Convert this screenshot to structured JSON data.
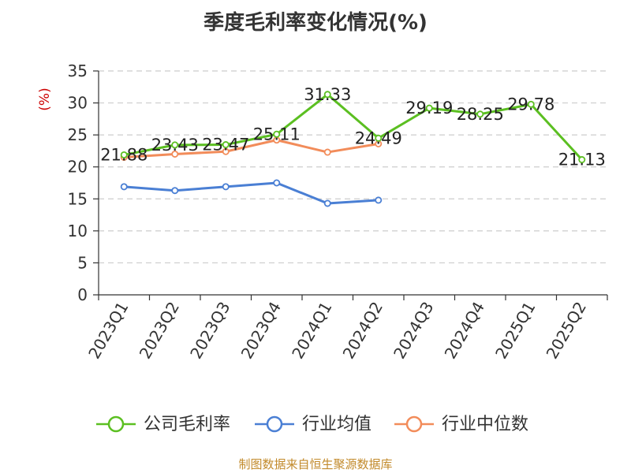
{
  "title": "季度毛利率变化情况(%)",
  "source_note": "制图数据来自恒生聚源数据库",
  "colors": {
    "company": "#5bbf21",
    "industry_avg": "#4a7fd4",
    "industry_median": "#f28c5a",
    "axis": "#333333",
    "grid": "#cccccc",
    "ylabel": "#cc0000",
    "source": "#c28a2b"
  },
  "chart_data": {
    "type": "line",
    "title": "季度毛利率变化情况(%)",
    "xlabel": "",
    "ylabel": "(%)",
    "ylim": [
      0,
      35
    ],
    "yticks": [
      0,
      5,
      10,
      15,
      20,
      25,
      30,
      35
    ],
    "grid": true,
    "legend_position": "bottom",
    "categories": [
      "2023Q1",
      "2023Q2",
      "2023Q3",
      "2023Q4",
      "2024Q1",
      "2024Q2",
      "2024Q3",
      "2024Q4",
      "2025Q1",
      "2025Q2"
    ],
    "series": [
      {
        "name": "公司毛利率",
        "color": "#5bbf21",
        "values": [
          21.88,
          23.43,
          23.47,
          25.11,
          31.33,
          24.49,
          29.19,
          28.25,
          29.78,
          21.13
        ],
        "labels": [
          "21.88",
          "23.43",
          "23.47",
          "25.11",
          "31.33",
          "24.49",
          "29.19",
          "28.25",
          "29.78",
          "21.13"
        ]
      },
      {
        "name": "行业均值",
        "color": "#4a7fd4",
        "values": [
          16.9,
          16.3,
          16.9,
          17.5,
          14.3,
          14.8,
          null,
          null,
          null,
          null
        ]
      },
      {
        "name": "行业中位数",
        "color": "#f28c5a",
        "values": [
          21.5,
          22.0,
          22.4,
          24.2,
          22.3,
          23.6,
          null,
          null,
          null,
          null
        ]
      }
    ]
  }
}
